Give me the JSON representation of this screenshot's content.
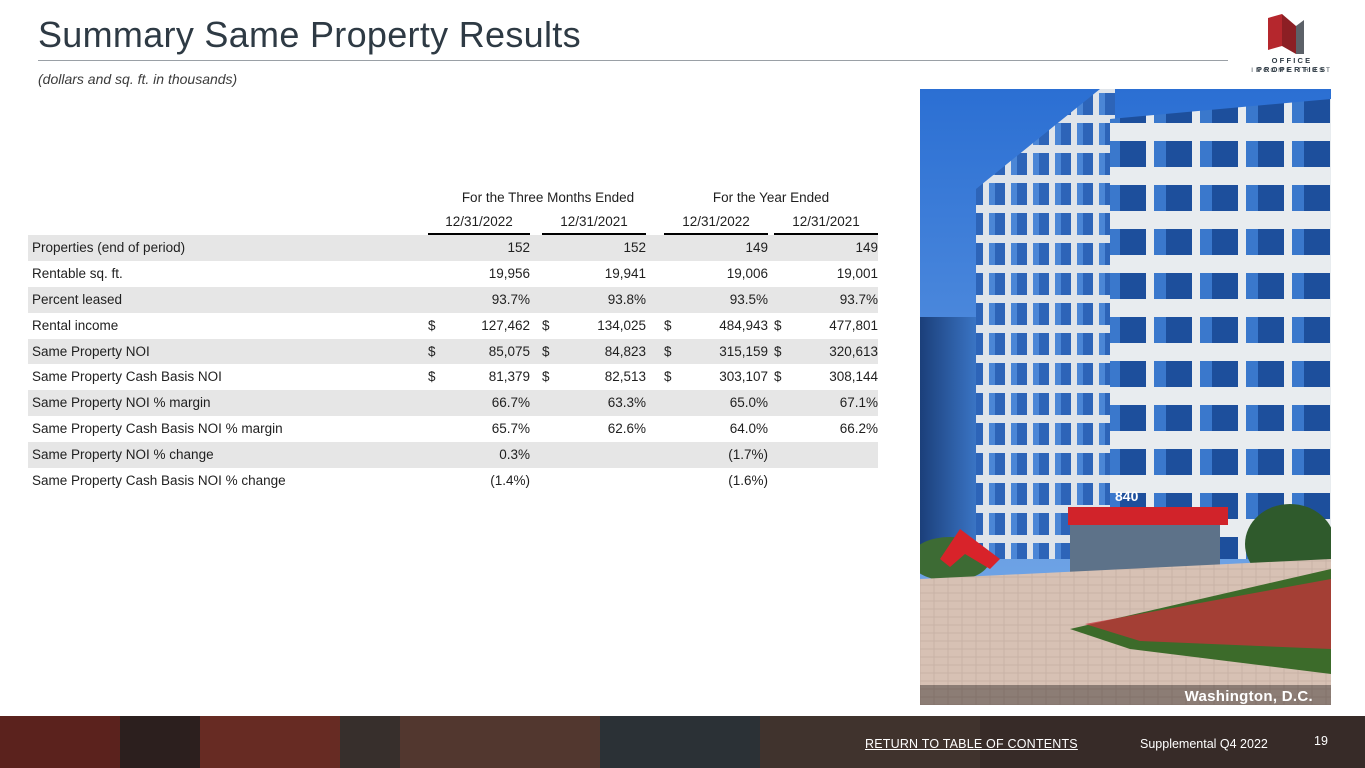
{
  "header": {
    "title": "Summary Same Property Results",
    "subtitle": "(dollars and sq. ft. in thousands)",
    "logo_line1": "OFFICE PROPERTIES",
    "logo_line2": "INCOME TRUST"
  },
  "table": {
    "group_headers": [
      "For the Three Months Ended",
      "For the Year Ended"
    ],
    "column_headers": [
      "12/31/2022",
      "12/31/2021",
      "12/31/2022",
      "12/31/2021"
    ],
    "rows": [
      {
        "label": "Properties (end of period)",
        "shaded": true,
        "cells": [
          {
            "cur": "",
            "val": "152"
          },
          {
            "cur": "",
            "val": "152"
          },
          {
            "cur": "",
            "val": "149"
          },
          {
            "cur": "",
            "val": "149"
          }
        ]
      },
      {
        "label": "Rentable sq. ft.",
        "shaded": false,
        "cells": [
          {
            "cur": "",
            "val": "19,956"
          },
          {
            "cur": "",
            "val": "19,941"
          },
          {
            "cur": "",
            "val": "19,006"
          },
          {
            "cur": "",
            "val": "19,001"
          }
        ]
      },
      {
        "label": "Percent leased",
        "shaded": true,
        "cells": [
          {
            "cur": "",
            "val": "93.7%"
          },
          {
            "cur": "",
            "val": "93.8%"
          },
          {
            "cur": "",
            "val": "93.5%"
          },
          {
            "cur": "",
            "val": "93.7%"
          }
        ]
      },
      {
        "label": "Rental income",
        "shaded": false,
        "cells": [
          {
            "cur": "$",
            "val": "127,462"
          },
          {
            "cur": "$",
            "val": "134,025"
          },
          {
            "cur": "$",
            "val": "484,943"
          },
          {
            "cur": "$",
            "val": "477,801"
          }
        ]
      },
      {
        "label": "Same Property NOI",
        "shaded": true,
        "cells": [
          {
            "cur": "$",
            "val": "85,075"
          },
          {
            "cur": "$",
            "val": "84,823"
          },
          {
            "cur": "$",
            "val": "315,159"
          },
          {
            "cur": "$",
            "val": "320,613"
          }
        ]
      },
      {
        "label": "Same Property Cash Basis NOI",
        "shaded": false,
        "cells": [
          {
            "cur": "$",
            "val": "81,379"
          },
          {
            "cur": "$",
            "val": "82,513"
          },
          {
            "cur": "$",
            "val": "303,107"
          },
          {
            "cur": "$",
            "val": "308,144"
          }
        ]
      },
      {
        "label": "Same Property NOI % margin",
        "shaded": true,
        "cells": [
          {
            "cur": "",
            "val": "66.7%"
          },
          {
            "cur": "",
            "val": "63.3%"
          },
          {
            "cur": "",
            "val": "65.0%"
          },
          {
            "cur": "",
            "val": "67.1%"
          }
        ]
      },
      {
        "label": "Same Property Cash Basis NOI % margin",
        "shaded": false,
        "cells": [
          {
            "cur": "",
            "val": "65.7%"
          },
          {
            "cur": "",
            "val": "62.6%"
          },
          {
            "cur": "",
            "val": "64.0%"
          },
          {
            "cur": "",
            "val": "66.2%"
          }
        ]
      },
      {
        "label": "Same Property NOI % change",
        "shaded": true,
        "cells": [
          {
            "cur": "",
            "val": "0.3%"
          },
          {
            "cur": "",
            "val": ""
          },
          {
            "cur": "",
            "val": "(1.7%)"
          },
          {
            "cur": "",
            "val": ""
          }
        ]
      },
      {
        "label": "Same Property Cash Basis NOI % change",
        "shaded": false,
        "cells": [
          {
            "cur": "",
            "val": "(1.4%)"
          },
          {
            "cur": "",
            "val": ""
          },
          {
            "cur": "",
            "val": "(1.6%)"
          },
          {
            "cur": "",
            "val": ""
          }
        ]
      }
    ]
  },
  "photo": {
    "caption": "Washington, D.C.",
    "building_number": "840"
  },
  "footer": {
    "return_link": "RETURN TO TABLE OF CONTENTS",
    "supplemental": "Supplemental Q4 2022",
    "page_number": "19"
  },
  "colors": {
    "title": "#2e3a44",
    "row_shade": "#e6e6e6",
    "brand_red": "#b5272d"
  }
}
